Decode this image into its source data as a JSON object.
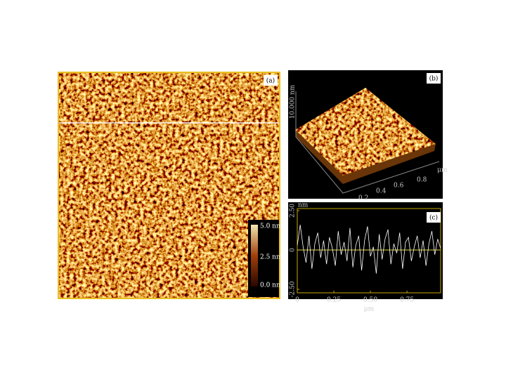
{
  "panel_a": {
    "label": "(a)",
    "colorbar": {
      "ticks": [
        "5.0 nm",
        "2.5 nm",
        "0.0 nm"
      ]
    }
  },
  "panel_b": {
    "label": "(b)",
    "z_label": "10.000 nm",
    "unit": "μm",
    "ticks": [
      "0.2",
      "0.4",
      "0.6",
      "0.8"
    ]
  },
  "chart_data": {
    "type": "line",
    "label": "(c)",
    "y_label": "nm",
    "x_label": "μm",
    "x": [
      0,
      0.02,
      0.04,
      0.06,
      0.08,
      0.1,
      0.12,
      0.14,
      0.16,
      0.18,
      0.2,
      0.22,
      0.24,
      0.26,
      0.28,
      0.3,
      0.32,
      0.34,
      0.36,
      0.38,
      0.4,
      0.42,
      0.44,
      0.46,
      0.48,
      0.5,
      0.52,
      0.54,
      0.56,
      0.58,
      0.6,
      0.62,
      0.64,
      0.66,
      0.68,
      0.7,
      0.72,
      0.74,
      0.76,
      0.78,
      0.8,
      0.82,
      0.84,
      0.86,
      0.88,
      0.9,
      0.92,
      0.94,
      0.96,
      0.98
    ],
    "series": [
      {
        "color": "#ffffff",
        "values": [
          0.3,
          1.6,
          0.2,
          -0.8,
          0.9,
          -1.2,
          0.4,
          1.1,
          -0.5,
          0.6,
          -0.9,
          0.8,
          0.1,
          -1.0,
          1.2,
          -0.3,
          0.5,
          -0.7,
          1.4,
          -1.1,
          0.3,
          0.9,
          -1.3,
          0.6,
          1.5,
          -0.4,
          0.2,
          -1.5,
          1.0,
          -0.6,
          0.7,
          1.3,
          -0.9,
          0.4,
          -0.2,
          1.1,
          -1.2,
          0.5,
          0.8,
          -0.7,
          0.2,
          0.9,
          -0.5,
          0.6,
          -1.0,
          0.4,
          1.2,
          -0.3,
          0.7,
          0.1
        ]
      }
    ],
    "xlim": [
      0,
      0.98
    ],
    "ylim": [
      -2.5,
      2.5
    ],
    "xticks": [
      0,
      0.25,
      {
        "value": 0.5,
        "label": "0.50"
      },
      0.75
    ],
    "yticks": [
      {
        "value": 2.5,
        "label": "2.50"
      },
      0,
      {
        "value": -2.5,
        "label": "-2.50"
      }
    ],
    "grid": true
  }
}
